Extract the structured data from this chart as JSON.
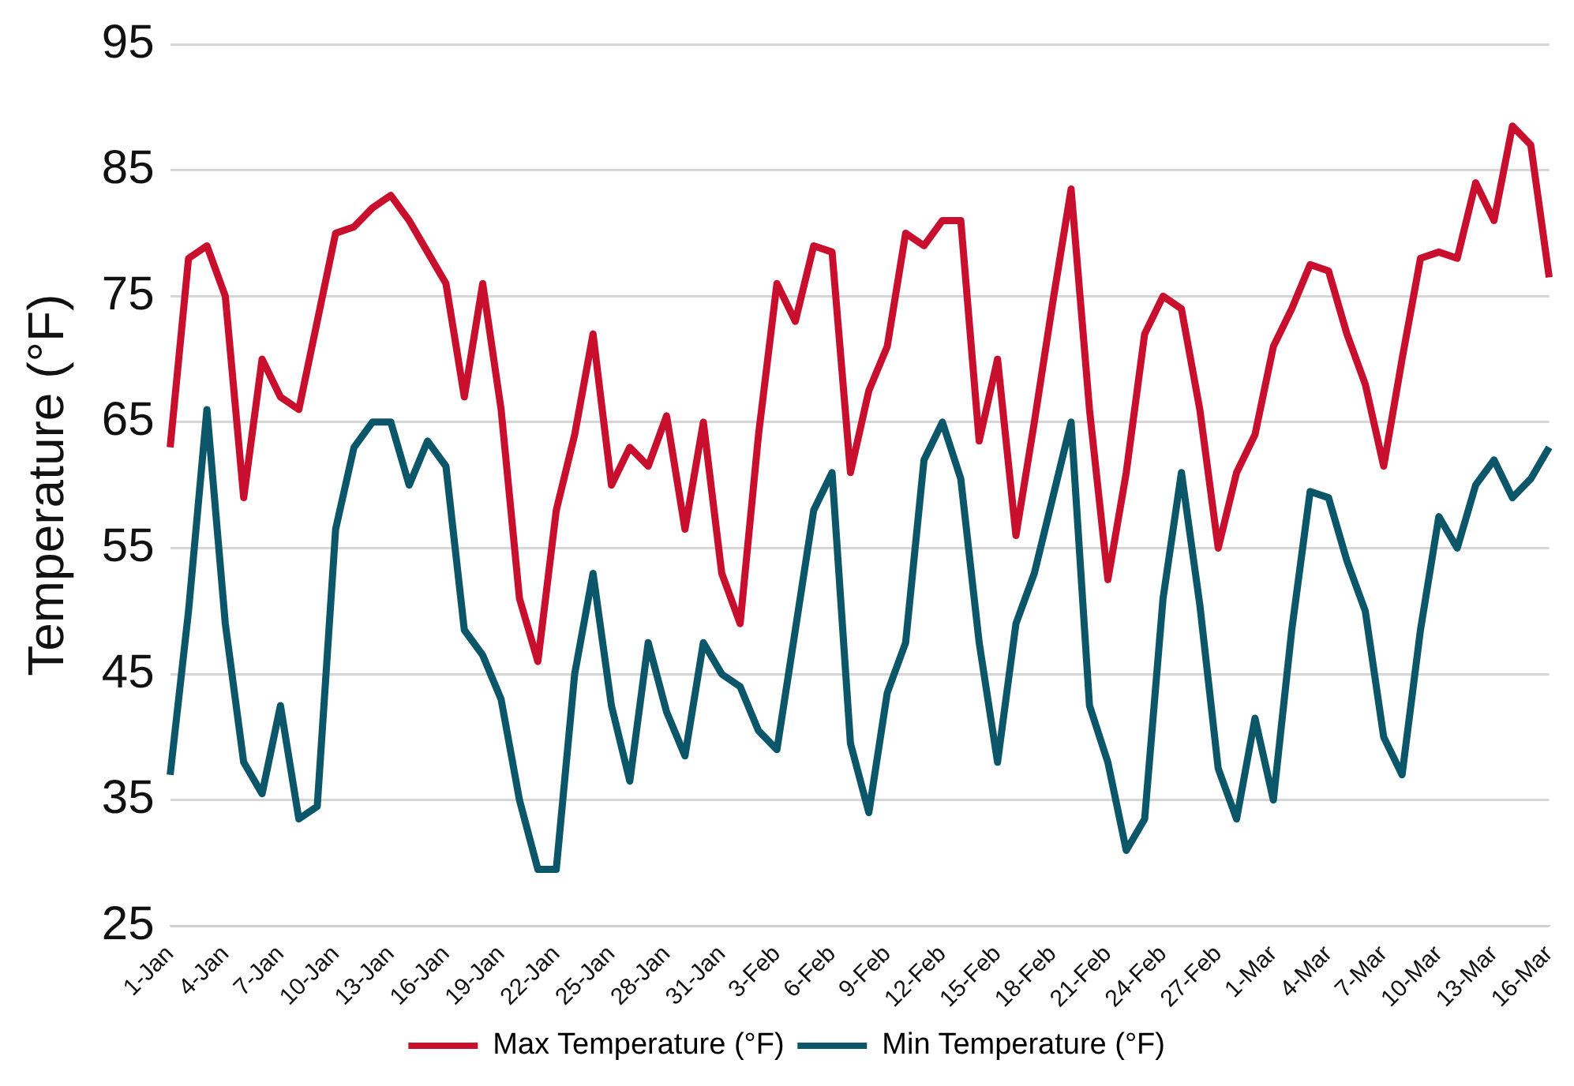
{
  "chart_data": {
    "type": "line",
    "ylabel": "Temperature (°F)",
    "categories": [
      "1-Jan",
      null,
      null,
      "4-Jan",
      null,
      null,
      "7-Jan",
      null,
      null,
      "10-Jan",
      null,
      null,
      "13-Jan",
      null,
      null,
      "16-Jan",
      null,
      null,
      "19-Jan",
      null,
      null,
      "22-Jan",
      null,
      null,
      "25-Jan",
      null,
      null,
      "28-Jan",
      null,
      null,
      "31-Jan",
      null,
      null,
      "3-Feb",
      null,
      null,
      "6-Feb",
      null,
      null,
      "9-Feb",
      null,
      null,
      "12-Feb",
      null,
      null,
      "15-Feb",
      null,
      null,
      "18-Feb",
      null,
      null,
      "21-Feb",
      null,
      null,
      "24-Feb",
      null,
      null,
      "27-Feb",
      null,
      null,
      "1-Mar",
      null,
      null,
      "4-Mar",
      null,
      null,
      "7-Mar",
      null,
      null,
      "10-Mar",
      null,
      null,
      "13-Mar",
      null,
      null,
      "16-Mar"
    ],
    "series": [
      {
        "name": "Max Temperature (°F)",
        "color": "#c8102e",
        "values": [
          63,
          78,
          79,
          75,
          59,
          70,
          67,
          66,
          73,
          80,
          80.5,
          82,
          83,
          81,
          78.5,
          76,
          67,
          76,
          66,
          51,
          46,
          58,
          64,
          72,
          60,
          63,
          61.5,
          65.5,
          56.5,
          65,
          53,
          49,
          64,
          76,
          73,
          79,
          78.5,
          61,
          67.5,
          71,
          80,
          79,
          81,
          81,
          63.5,
          70,
          56,
          65,
          74.5,
          83.5,
          66,
          52.5,
          61,
          72,
          75,
          74,
          66,
          55,
          61,
          64,
          71,
          74,
          77.5,
          77,
          72,
          68,
          61.5,
          70,
          78,
          78.5,
          78,
          84,
          81,
          88.5,
          87,
          76.5
        ]
      },
      {
        "name": "Min Temperature (°F)",
        "color": "#0b5668",
        "values": [
          37,
          50,
          66,
          49,
          38,
          35.5,
          42.5,
          33.5,
          34.5,
          56.5,
          63,
          65,
          65,
          60,
          63.5,
          61.5,
          48.5,
          46.5,
          43,
          35,
          29.5,
          29.5,
          45,
          53,
          42.5,
          36.5,
          47.5,
          42,
          38.5,
          47.5,
          45,
          44,
          40.5,
          39,
          48.5,
          58,
          61,
          39.5,
          34,
          43.5,
          47.5,
          62,
          65,
          60.5,
          47.5,
          38,
          49,
          53,
          59,
          65,
          42.5,
          38,
          31,
          33.5,
          51,
          61,
          50.5,
          37.5,
          33.5,
          41.5,
          35,
          48.5,
          59.5,
          59,
          54,
          50,
          40,
          37,
          48.5,
          57.5,
          55,
          60,
          62,
          59,
          60.5,
          63
        ]
      }
    ],
    "ylim": [
      25,
      95
    ],
    "yticks": [
      25,
      35,
      45,
      55,
      65,
      75,
      85,
      95
    ],
    "grid": "y",
    "legend": "bottom",
    "marker": "none",
    "line_style": "solid"
  }
}
